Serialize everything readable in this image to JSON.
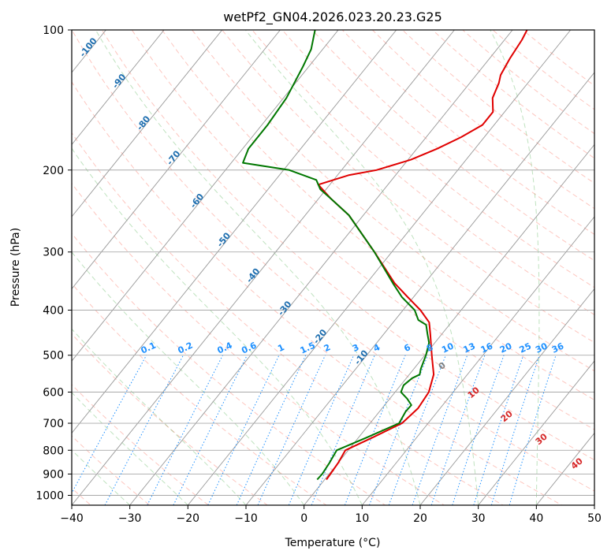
{
  "chart_data": {
    "type": "line",
    "subtype": "skew-t log-p diagram",
    "title": "wetPf2_GN04.2026.023.20.23.G25",
    "xlabel": "Temperature (°C)",
    "ylabel": "Pressure (hPa)",
    "xlim": [
      -40,
      50
    ],
    "ylim": [
      1050,
      100
    ],
    "y_scale": "log",
    "grid": true,
    "x_ticks": [
      -40,
      -30,
      -20,
      -10,
      0,
      10,
      20,
      30,
      40,
      50
    ],
    "y_ticks": [
      100,
      200,
      300,
      400,
      500,
      600,
      700,
      800,
      900,
      1000
    ],
    "colors": {
      "temperature": "#e00000",
      "dewpoint": "#007700",
      "isotherm_labels": "#1f6fb0",
      "mixing_ratio": "#1e90ff",
      "dry_adiabat": "#fa8072",
      "moist_adiabat": "#2ca02c",
      "theta_e_labels": "#d62728"
    },
    "isotherm_labels": [
      "-100",
      "-90",
      "-80",
      "-70",
      "-60",
      "-50",
      "-40",
      "-30",
      "-20",
      "-10"
    ],
    "mixing_ratio_labels": [
      "0.1",
      "0.2",
      "0.4",
      "0.6",
      "1",
      "1.5",
      "2",
      "3",
      "4",
      "6",
      "8",
      "10",
      "13",
      "16",
      "20",
      "25",
      "30",
      "36"
    ],
    "mixing_ratio_values": [
      0.1,
      0.2,
      0.4,
      0.6,
      1,
      1.5,
      2,
      3,
      4,
      6,
      8,
      10,
      13,
      16,
      20,
      25,
      30,
      36
    ],
    "annotations": {
      "freezing_label": "0",
      "theta_labels": [
        "10",
        "20",
        "30",
        "40"
      ]
    },
    "series": [
      {
        "name": "Temperature",
        "points": [
          [
            925,
            0.3
          ],
          [
            900,
            0.2
          ],
          [
            850,
            0.0
          ],
          [
            800,
            -0.5
          ],
          [
            750,
            2.5
          ],
          [
            700,
            5.5
          ],
          [
            650,
            6.2
          ],
          [
            600,
            5.8
          ],
          [
            550,
            4.2
          ],
          [
            500,
            1.2
          ],
          [
            450,
            -2.0
          ],
          [
            425,
            -3.8
          ],
          [
            400,
            -7.0
          ],
          [
            375,
            -11.0
          ],
          [
            350,
            -15.2
          ],
          [
            300,
            -23.0
          ],
          [
            250,
            -32.5
          ],
          [
            230,
            -38.0
          ],
          [
            215,
            -42.0
          ],
          [
            205,
            -38.0
          ],
          [
            200,
            -34.0
          ],
          [
            190,
            -29.5
          ],
          [
            180,
            -26.5
          ],
          [
            170,
            -24.0
          ],
          [
            160,
            -22.0
          ],
          [
            150,
            -22.0
          ],
          [
            140,
            -24.0
          ],
          [
            130,
            -25.0
          ],
          [
            125,
            -25.8
          ],
          [
            115,
            -26.5
          ],
          [
            105,
            -27.0
          ],
          [
            100,
            -27.5
          ]
        ]
      },
      {
        "name": "Dewpoint",
        "points": [
          [
            925,
            -1.3
          ],
          [
            900,
            -1.2
          ],
          [
            850,
            -1.5
          ],
          [
            800,
            -2.0
          ],
          [
            750,
            1.5
          ],
          [
            700,
            5.0
          ],
          [
            660,
            4.5
          ],
          [
            640,
            4.6
          ],
          [
            620,
            3.0
          ],
          [
            600,
            1.0
          ],
          [
            580,
            0.5
          ],
          [
            560,
            1.0
          ],
          [
            550,
            1.8
          ],
          [
            535,
            1.2
          ],
          [
            500,
            0.2
          ],
          [
            470,
            -1.0
          ],
          [
            450,
            -2.5
          ],
          [
            430,
            -4.0
          ],
          [
            420,
            -6.0
          ],
          [
            400,
            -8.0
          ],
          [
            375,
            -12.0
          ],
          [
            350,
            -15.5
          ],
          [
            300,
            -23.0
          ],
          [
            250,
            -32.5
          ],
          [
            230,
            -38.0
          ],
          [
            220,
            -41.0
          ],
          [
            210,
            -43.0
          ],
          [
            200,
            -49.0
          ],
          [
            193,
            -58.0
          ],
          [
            180,
            -59.0
          ],
          [
            160,
            -59.0
          ],
          [
            140,
            -59.5
          ],
          [
            120,
            -61.0
          ],
          [
            110,
            -62.0
          ],
          [
            100,
            -64.0
          ]
        ]
      }
    ]
  }
}
